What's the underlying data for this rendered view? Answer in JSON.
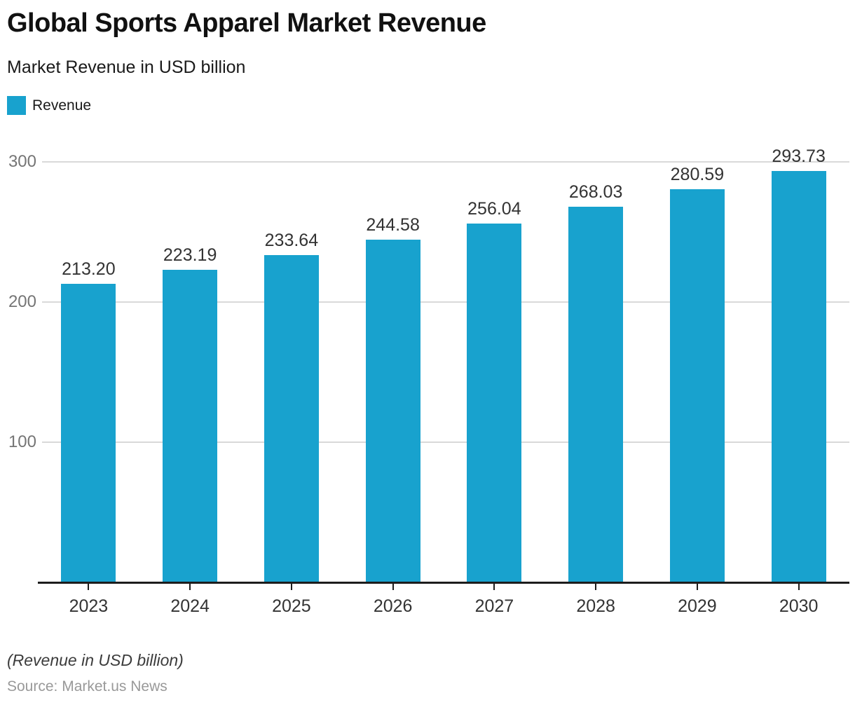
{
  "footer": {
    "note": "(Revenue in USD billion)",
    "source": "Source: Market.us News"
  },
  "chart_data": {
    "type": "bar",
    "title": "Global Sports Apparel Market Revenue",
    "subtitle": "Market Revenue in USD billion",
    "categories": [
      "2023",
      "2024",
      "2025",
      "2026",
      "2027",
      "2028",
      "2029",
      "2030"
    ],
    "series": [
      {
        "name": "Revenue",
        "values": [
          213.2,
          223.19,
          233.64,
          244.58,
          256.04,
          268.03,
          280.59,
          293.73
        ]
      }
    ],
    "value_labels_shown": true,
    "value_label_decimals": 2,
    "xlabel": "",
    "ylabel": "",
    "y_ticks": [
      100,
      200,
      300
    ],
    "ylim": [
      0,
      300
    ],
    "grid": "horizontal",
    "legend_position": "top-left",
    "colors": {
      "bar": "#18a2ce",
      "grid": "#d9d9d9",
      "axis": "#1d1d1d",
      "tick_label": "#757575",
      "value_label": "#333333",
      "category_label": "#333333"
    }
  }
}
